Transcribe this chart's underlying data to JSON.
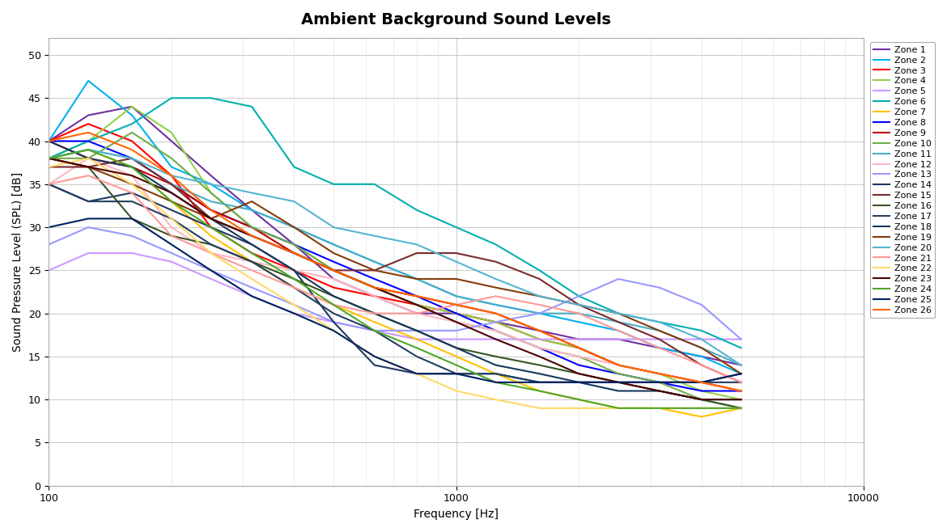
{
  "title": "Ambient Background Sound Levels",
  "xlabel": "Frequency [Hz]",
  "ylabel": "Sound Pressure Level (SPL) [dB]",
  "ylim": [
    0,
    52
  ],
  "xlim": [
    100,
    10000
  ],
  "yticks": [
    0,
    5,
    10,
    15,
    20,
    25,
    30,
    35,
    40,
    45,
    50
  ],
  "frequencies": [
    100,
    125,
    160,
    200,
    250,
    315,
    400,
    500,
    630,
    800,
    1000,
    1250,
    1600,
    2000,
    2500,
    3150,
    4000,
    5000
  ],
  "zones": [
    {
      "name": "Zone 1",
      "color": "#7030A0",
      "values": [
        40,
        43,
        44,
        40,
        36,
        32,
        28,
        24,
        22,
        20,
        20,
        19,
        18,
        17,
        17,
        16,
        15,
        14
      ]
    },
    {
      "name": "Zone 2",
      "color": "#00B0F0",
      "values": [
        40,
        47,
        43,
        37,
        35,
        32,
        30,
        28,
        26,
        24,
        22,
        21,
        20,
        19,
        18,
        16,
        15,
        13
      ]
    },
    {
      "name": "Zone 3",
      "color": "#FF0000",
      "values": [
        40,
        42,
        40,
        36,
        30,
        27,
        25,
        23,
        22,
        21,
        20,
        19,
        17,
        16,
        14,
        13,
        12,
        11
      ]
    },
    {
      "name": "Zone 4",
      "color": "#92D050",
      "values": [
        38,
        40,
        44,
        41,
        34,
        30,
        28,
        25,
        23,
        21,
        20,
        19,
        17,
        16,
        14,
        13,
        11,
        10
      ]
    },
    {
      "name": "Zone 5",
      "color": "#CC99FF",
      "values": [
        25,
        27,
        27,
        26,
        24,
        22,
        20,
        19,
        18,
        17,
        17,
        17,
        17,
        17,
        17,
        17,
        17,
        17
      ]
    },
    {
      "name": "Zone 6",
      "color": "#00B0B0",
      "values": [
        38,
        40,
        42,
        45,
        45,
        44,
        37,
        35,
        35,
        32,
        30,
        28,
        25,
        22,
        20,
        19,
        18,
        16
      ]
    },
    {
      "name": "Zone 7",
      "color": "#FFC000",
      "values": [
        38,
        39,
        37,
        33,
        29,
        26,
        23,
        21,
        19,
        17,
        15,
        13,
        11,
        10,
        9,
        9,
        8,
        9
      ]
    },
    {
      "name": "Zone 8",
      "color": "#0000FF",
      "values": [
        40,
        40,
        38,
        35,
        32,
        30,
        28,
        26,
        24,
        22,
        20,
        18,
        16,
        14,
        13,
        12,
        11,
        11
      ]
    },
    {
      "name": "Zone 9",
      "color": "#C00000",
      "values": [
        40,
        38,
        37,
        35,
        32,
        30,
        27,
        25,
        23,
        22,
        21,
        20,
        18,
        16,
        14,
        13,
        12,
        11
      ]
    },
    {
      "name": "Zone 10",
      "color": "#70AD47",
      "values": [
        38,
        38,
        41,
        38,
        34,
        30,
        28,
        25,
        23,
        21,
        19,
        18,
        16,
        15,
        13,
        12,
        10,
        9
      ]
    },
    {
      "name": "Zone 11",
      "color": "#4BACC6",
      "values": [
        38,
        39,
        38,
        35,
        33,
        32,
        30,
        28,
        26,
        24,
        22,
        21,
        20,
        20,
        19,
        18,
        16,
        14
      ]
    },
    {
      "name": "Zone 12",
      "color": "#FFB6C1",
      "values": [
        35,
        38,
        36,
        30,
        27,
        26,
        25,
        24,
        22,
        20,
        19,
        18,
        16,
        15,
        14,
        13,
        12,
        11
      ]
    },
    {
      "name": "Zone 13",
      "color": "#9999FF",
      "values": [
        28,
        30,
        29,
        27,
        25,
        23,
        21,
        19,
        18,
        18,
        18,
        19,
        20,
        22,
        24,
        23,
        21,
        17
      ]
    },
    {
      "name": "Zone 14",
      "color": "#1F3864",
      "values": [
        35,
        33,
        34,
        32,
        30,
        28,
        25,
        19,
        14,
        13,
        13,
        13,
        12,
        12,
        12,
        12,
        12,
        12
      ]
    },
    {
      "name": "Zone 15",
      "color": "#7B2C2C",
      "values": [
        37,
        37,
        38,
        35,
        31,
        29,
        27,
        25,
        25,
        27,
        27,
        26,
        24,
        21,
        19,
        17,
        14,
        12
      ]
    },
    {
      "name": "Zone 16",
      "color": "#375623",
      "values": [
        38,
        37,
        31,
        29,
        28,
        26,
        24,
        22,
        20,
        18,
        16,
        15,
        14,
        13,
        12,
        11,
        10,
        9
      ]
    },
    {
      "name": "Zone 17",
      "color": "#243F60",
      "values": [
        35,
        33,
        33,
        31,
        28,
        26,
        23,
        20,
        18,
        15,
        13,
        13,
        12,
        12,
        12,
        12,
        12,
        13
      ]
    },
    {
      "name": "Zone 18",
      "color": "#17375E",
      "values": [
        40,
        38,
        37,
        34,
        31,
        28,
        25,
        22,
        20,
        18,
        16,
        14,
        13,
        12,
        11,
        11,
        10,
        10
      ]
    },
    {
      "name": "Zone 19",
      "color": "#843C0C",
      "values": [
        38,
        37,
        35,
        33,
        31,
        33,
        30,
        27,
        25,
        24,
        24,
        23,
        22,
        21,
        20,
        18,
        16,
        13
      ]
    },
    {
      "name": "Zone 20",
      "color": "#56B4D3",
      "values": [
        38,
        39,
        38,
        36,
        35,
        34,
        33,
        30,
        29,
        28,
        26,
        24,
        22,
        21,
        20,
        19,
        17,
        14
      ]
    },
    {
      "name": "Zone 21",
      "color": "#FF9999",
      "values": [
        35,
        36,
        34,
        29,
        27,
        25,
        23,
        21,
        20,
        20,
        21,
        22,
        21,
        20,
        18,
        16,
        14,
        12
      ]
    },
    {
      "name": "Zone 22",
      "color": "#FFD966",
      "values": [
        37,
        38,
        35,
        31,
        27,
        24,
        21,
        18,
        15,
        13,
        11,
        10,
        9,
        9,
        9,
        9,
        9,
        9
      ]
    },
    {
      "name": "Zone 23",
      "color": "#4D0000",
      "values": [
        38,
        37,
        36,
        34,
        31,
        29,
        27,
        25,
        23,
        21,
        19,
        17,
        15,
        13,
        12,
        11,
        10,
        10
      ]
    },
    {
      "name": "Zone 24",
      "color": "#4EA72A",
      "values": [
        38,
        39,
        37,
        33,
        30,
        27,
        24,
        21,
        18,
        16,
        14,
        12,
        11,
        10,
        9,
        9,
        9,
        9
      ]
    },
    {
      "name": "Zone 25",
      "color": "#002060",
      "values": [
        30,
        31,
        31,
        28,
        25,
        22,
        20,
        18,
        15,
        13,
        13,
        12,
        12,
        12,
        12,
        12,
        12,
        13
      ]
    },
    {
      "name": "Zone 26",
      "color": "#FF6600",
      "values": [
        40,
        41,
        39,
        36,
        32,
        29,
        27,
        25,
        23,
        22,
        21,
        20,
        18,
        16,
        14,
        13,
        12,
        11
      ]
    }
  ],
  "background_color": "#FFFFFF",
  "grid_color": "#C0C0C0",
  "title_fontsize": 14,
  "label_fontsize": 10,
  "tick_fontsize": 9,
  "legend_fontsize": 8,
  "linewidth": 1.5
}
